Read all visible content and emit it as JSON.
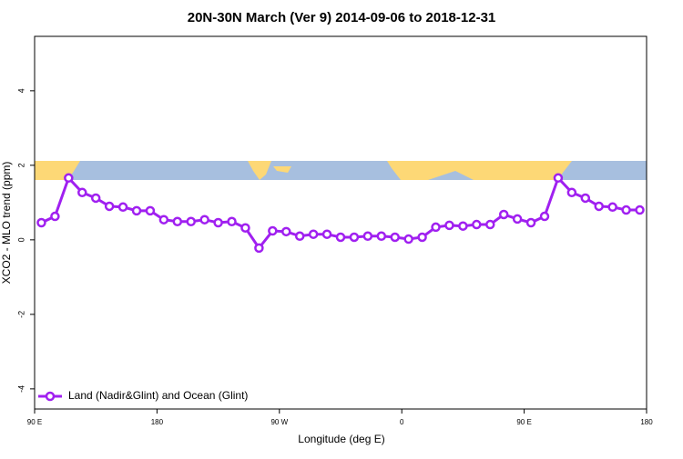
{
  "chart_data": {
    "type": "line",
    "title": "20N-30N March (Ver 9)   2014-09-06 to 2018-12-31",
    "xlabel": "Longitude (deg E)",
    "ylabel": "XCO2 - MLO trend (ppm)",
    "x": [
      95,
      105,
      115,
      125,
      135,
      145,
      155,
      165,
      175,
      185,
      195,
      205,
      215,
      225,
      235,
      245,
      255,
      265,
      275,
      285,
      295,
      305,
      315,
      325,
      335,
      345,
      355,
      365,
      375,
      385,
      395,
      405,
      415,
      425,
      435,
      445,
      455,
      465,
      475,
      485,
      495,
      505,
      515,
      525,
      535
    ],
    "series": [
      {
        "name": "Land (Nadir&Glint) and Ocean (Glint)",
        "color": "#a020f0",
        "values": [
          0.46,
          0.63,
          1.66,
          1.27,
          1.12,
          0.9,
          0.88,
          0.78,
          0.78,
          0.54,
          0.49,
          0.49,
          0.54,
          0.46,
          0.49,
          0.32,
          -0.22,
          0.24,
          0.22,
          0.1,
          0.15,
          0.15,
          0.07,
          0.07,
          0.1,
          0.1,
          0.07,
          0.02,
          0.07,
          0.34,
          0.39,
          0.37,
          0.41,
          0.41,
          0.68,
          0.56,
          0.46,
          0.63,
          1.66,
          1.27,
          1.12,
          0.9,
          0.88,
          0.8,
          0.8
        ]
      }
    ],
    "xlim": [
      90,
      540
    ],
    "xticks": [
      {
        "value": 90,
        "label": "90 E"
      },
      {
        "value": 180,
        "label": "180"
      },
      {
        "value": 270,
        "label": "90 W"
      },
      {
        "value": 360,
        "label": "0"
      },
      {
        "value": 450,
        "label": "90 E"
      },
      {
        "value": 540,
        "label": "180"
      }
    ],
    "ylim": [
      -4.54,
      5.46
    ],
    "yticks": [
      -4,
      -2,
      0,
      2,
      4
    ],
    "legend": "bottom-left"
  }
}
